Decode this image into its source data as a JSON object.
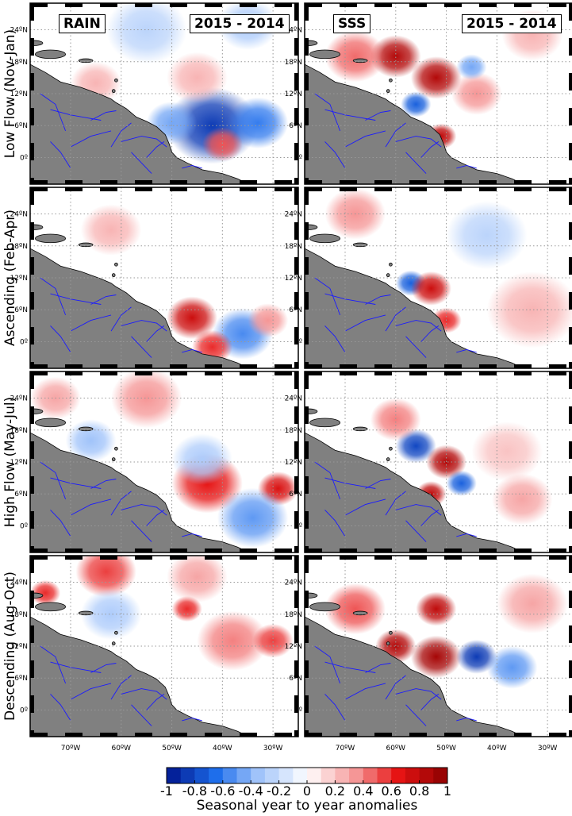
{
  "figure": {
    "columns": [
      {
        "variable": "RAIN",
        "period": "2015 - 2014"
      },
      {
        "variable": "SSS",
        "period": "2015 - 2014"
      }
    ],
    "rows": [
      "Low Flow (Nov-Jan)",
      "Ascending (Feb-Apr)",
      "High Flow (May-Jul)",
      "Descending (Aug-Oct)"
    ],
    "lat_tick_labels": [
      "24ºN",
      "18ºN",
      "12ºN",
      "6ºN",
      "0º"
    ],
    "lon_tick_labels": [
      "70ºW",
      "60ºW",
      "50ºW",
      "40ºW",
      "30ºW"
    ],
    "colorbar": {
      "title": "Seasonal year to year anomalies",
      "ticks": [
        "-1",
        "-0.8",
        "-0.6",
        "-0.4",
        "-0.2",
        "0",
        "0.2",
        "0.4",
        "0.6",
        "0.8",
        "1"
      ]
    },
    "colors": {
      "land": "#808080",
      "rivers": "#1a1aff",
      "positive": "#b40000",
      "negative": "#001e96",
      "zero": "#ffffff"
    }
  },
  "chart_data": {
    "type": "heatmap",
    "xlabel": "",
    "ylabel": "",
    "x_range": [
      -78,
      -25
    ],
    "y_range": [
      -5,
      29
    ],
    "grid": true,
    "color_range": [
      -1,
      1
    ],
    "colormap": "blue-white-red diverging, 20 discrete levels",
    "panels": [
      {
        "row": "Low Flow (Nov-Jan)",
        "variable": "RAIN",
        "blobs": [
          {
            "lon": -42,
            "lat": 6.0,
            "r": 9,
            "v": -0.85
          },
          {
            "lon": -33,
            "lat": 6.5,
            "r": 6,
            "v": -0.6
          },
          {
            "lon": -50,
            "lat": 6.5,
            "r": 5,
            "v": -0.45
          },
          {
            "lon": -40,
            "lat": 2.5,
            "r": 4,
            "v": 0.5
          },
          {
            "lon": -45,
            "lat": 15,
            "r": 6,
            "v": 0.25
          },
          {
            "lon": -65,
            "lat": 14,
            "r": 5,
            "v": 0.25
          },
          {
            "lon": -55,
            "lat": 24,
            "r": 8,
            "v": -0.25
          },
          {
            "lon": -35,
            "lat": 25,
            "r": 6,
            "v": -0.3
          }
        ]
      },
      {
        "row": "Low Flow (Nov-Jan)",
        "variable": "SSS",
        "blobs": [
          {
            "lon": -60,
            "lat": 19,
            "r": 5,
            "v": 0.85
          },
          {
            "lon": -52,
            "lat": 15,
            "r": 5,
            "v": 0.85
          },
          {
            "lon": -56,
            "lat": 10,
            "r": 3,
            "v": -0.7
          },
          {
            "lon": -51,
            "lat": 4,
            "r": 3,
            "v": 0.8
          },
          {
            "lon": -68,
            "lat": 19,
            "r": 6,
            "v": 0.45
          },
          {
            "lon": -44,
            "lat": 12,
            "r": 5,
            "v": 0.35
          },
          {
            "lon": -45,
            "lat": 17,
            "r": 3,
            "v": -0.45
          },
          {
            "lon": -33,
            "lat": 23,
            "r": 6,
            "v": 0.25
          }
        ]
      },
      {
        "row": "Ascending (Feb-Apr)",
        "variable": "RAIN",
        "blobs": [
          {
            "lon": -46,
            "lat": 4.5,
            "r": 5,
            "v": 0.75
          },
          {
            "lon": -36,
            "lat": 1.5,
            "r": 6,
            "v": -0.55
          },
          {
            "lon": -42,
            "lat": -1,
            "r": 4,
            "v": 0.6
          },
          {
            "lon": -62,
            "lat": 21,
            "r": 6,
            "v": 0.25
          },
          {
            "lon": -31,
            "lat": 4,
            "r": 4,
            "v": 0.35
          }
        ]
      },
      {
        "row": "Ascending (Feb-Apr)",
        "variable": "SSS",
        "blobs": [
          {
            "lon": -57,
            "lat": 11,
            "r": 3,
            "v": -0.7
          },
          {
            "lon": -53,
            "lat": 10,
            "r": 4,
            "v": 0.75
          },
          {
            "lon": -50,
            "lat": 4,
            "r": 3,
            "v": 0.6
          },
          {
            "lon": -68,
            "lat": 24,
            "r": 6,
            "v": 0.35
          },
          {
            "lon": -33,
            "lat": 6,
            "r": 9,
            "v": 0.25
          },
          {
            "lon": -42,
            "lat": 20,
            "r": 8,
            "v": -0.25
          }
        ]
      },
      {
        "row": "High Flow (May-Jul)",
        "variable": "RAIN",
        "blobs": [
          {
            "lon": -43,
            "lat": 8,
            "r": 7,
            "v": 0.65
          },
          {
            "lon": -29,
            "lat": 7,
            "r": 4,
            "v": 0.7
          },
          {
            "lon": -34,
            "lat": 1.5,
            "r": 7,
            "v": -0.5
          },
          {
            "lon": -44,
            "lat": 12.5,
            "r": 6,
            "v": -0.3
          },
          {
            "lon": -66,
            "lat": 16,
            "r": 5,
            "v": -0.35
          },
          {
            "lon": -55,
            "lat": 24,
            "r": 7,
            "v": 0.35
          },
          {
            "lon": -73,
            "lat": 24,
            "r": 5,
            "v": 0.3
          }
        ]
      },
      {
        "row": "High Flow (May-Jul)",
        "variable": "SSS",
        "blobs": [
          {
            "lon": -56,
            "lat": 15,
            "r": 4,
            "v": -0.8
          },
          {
            "lon": -50,
            "lat": 12,
            "r": 4,
            "v": 0.85
          },
          {
            "lon": -53,
            "lat": 6,
            "r": 3,
            "v": 0.8
          },
          {
            "lon": -47,
            "lat": 8,
            "r": 3,
            "v": -0.7
          },
          {
            "lon": -60,
            "lat": 20,
            "r": 5,
            "v": 0.4
          },
          {
            "lon": -38,
            "lat": 14,
            "r": 7,
            "v": 0.2
          },
          {
            "lon": -35,
            "lat": 5,
            "r": 6,
            "v": 0.3
          }
        ]
      },
      {
        "row": "Descending (Aug-Oct)",
        "variable": "RAIN",
        "blobs": [
          {
            "lon": -63,
            "lat": 26,
            "r": 6,
            "v": 0.55
          },
          {
            "lon": -75,
            "lat": 22,
            "r": 3,
            "v": 0.6
          },
          {
            "lon": -47,
            "lat": 19,
            "r": 3,
            "v": 0.6
          },
          {
            "lon": -38,
            "lat": 13,
            "r": 7,
            "v": 0.4
          },
          {
            "lon": -62,
            "lat": 18,
            "r": 6,
            "v": -0.3
          },
          {
            "lon": -30,
            "lat": 13,
            "r": 4,
            "v": 0.55
          },
          {
            "lon": -45,
            "lat": 25,
            "r": 6,
            "v": 0.3
          }
        ]
      },
      {
        "row": "Descending (Aug-Oct)",
        "variable": "SSS",
        "blobs": [
          {
            "lon": -52,
            "lat": 10,
            "r": 5,
            "v": 0.9
          },
          {
            "lon": -52,
            "lat": 19,
            "r": 4,
            "v": 0.8
          },
          {
            "lon": -44,
            "lat": 10,
            "r": 4,
            "v": -0.85
          },
          {
            "lon": -37,
            "lat": 8,
            "r": 5,
            "v": -0.5
          },
          {
            "lon": -60,
            "lat": 12,
            "r": 4,
            "v": 0.85
          },
          {
            "lon": -68,
            "lat": 19,
            "r": 6,
            "v": 0.5
          },
          {
            "lon": -33,
            "lat": 20,
            "r": 7,
            "v": 0.3
          }
        ]
      }
    ]
  }
}
